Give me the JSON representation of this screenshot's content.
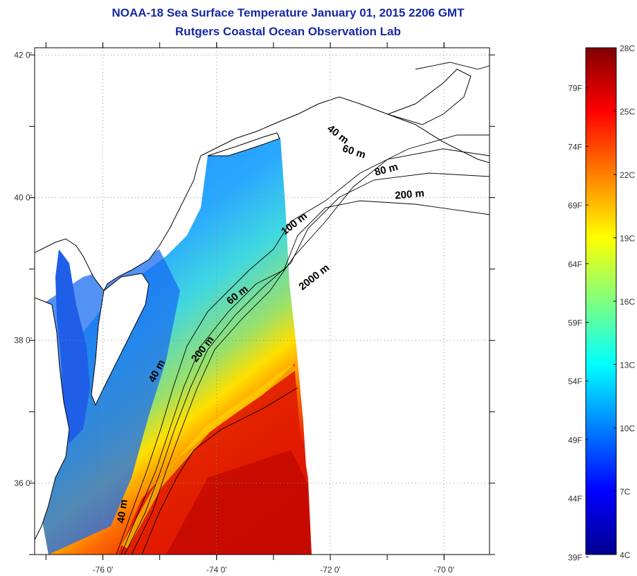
{
  "title": {
    "line1": "NOAA-18 Sea Surface Temperature January 01, 2015 2206 GMT",
    "line2": "Rutgers Coastal Ocean Observation Lab"
  },
  "map": {
    "lon_ticks": [
      {
        "value": -76,
        "label": "-76 0'"
      },
      {
        "value": -74,
        "label": "-74 0'"
      },
      {
        "value": -72,
        "label": "-72 0'"
      },
      {
        "value": -70,
        "label": "-70 0'"
      }
    ],
    "lat_ticks": [
      {
        "value": 42,
        "label": "42 0'"
      },
      {
        "value": 40,
        "label": "40 0'"
      },
      {
        "value": 38,
        "label": "38 0'"
      },
      {
        "value": 36,
        "label": "36 0'"
      }
    ],
    "lon_range": [
      -77.2,
      -69.2
    ],
    "lat_range": [
      35.0,
      42.1
    ],
    "grid": "dotted",
    "contour_labels": [
      {
        "text": "40 m",
        "lon": -71.9,
        "lat": 40.85,
        "rot": 38
      },
      {
        "text": "60 m",
        "lon": -71.6,
        "lat": 40.6,
        "rot": 18
      },
      {
        "text": "80 m",
        "lon": -71.0,
        "lat": 40.35,
        "rot": -15
      },
      {
        "text": "200 m",
        "lon": -70.6,
        "lat": 40.0,
        "rot": -5
      },
      {
        "text": "100 m",
        "lon": -72.6,
        "lat": 39.6,
        "rot": -38
      },
      {
        "text": "2000 m",
        "lon": -72.25,
        "lat": 38.85,
        "rot": -38
      },
      {
        "text": "60 m",
        "lon": -73.6,
        "lat": 38.6,
        "rot": -38
      },
      {
        "text": "200 m",
        "lon": -74.2,
        "lat": 37.85,
        "rot": -52
      },
      {
        "text": "40 m",
        "lon": -75.0,
        "lat": 37.55,
        "rot": -62
      },
      {
        "text": "40 m",
        "lon": -75.6,
        "lat": 35.6,
        "rot": -82
      }
    ],
    "land_color": "#ffffff",
    "coast_color": "#000000"
  },
  "colorbar": {
    "fahrenheit": [
      "79F",
      "74F",
      "69F",
      "64F",
      "59F",
      "54F",
      "49F",
      "44F",
      "39F"
    ],
    "celsius": [
      "28C",
      "25C",
      "22C",
      "19C",
      "16C",
      "13C",
      "10C",
      "7C",
      "4C"
    ],
    "range_c": [
      4,
      28
    ],
    "colormap": [
      "#00008f",
      "#0000ff",
      "#0080ff",
      "#00ffff",
      "#80ff80",
      "#ffff00",
      "#ff8000",
      "#ff0000",
      "#800000"
    ]
  }
}
